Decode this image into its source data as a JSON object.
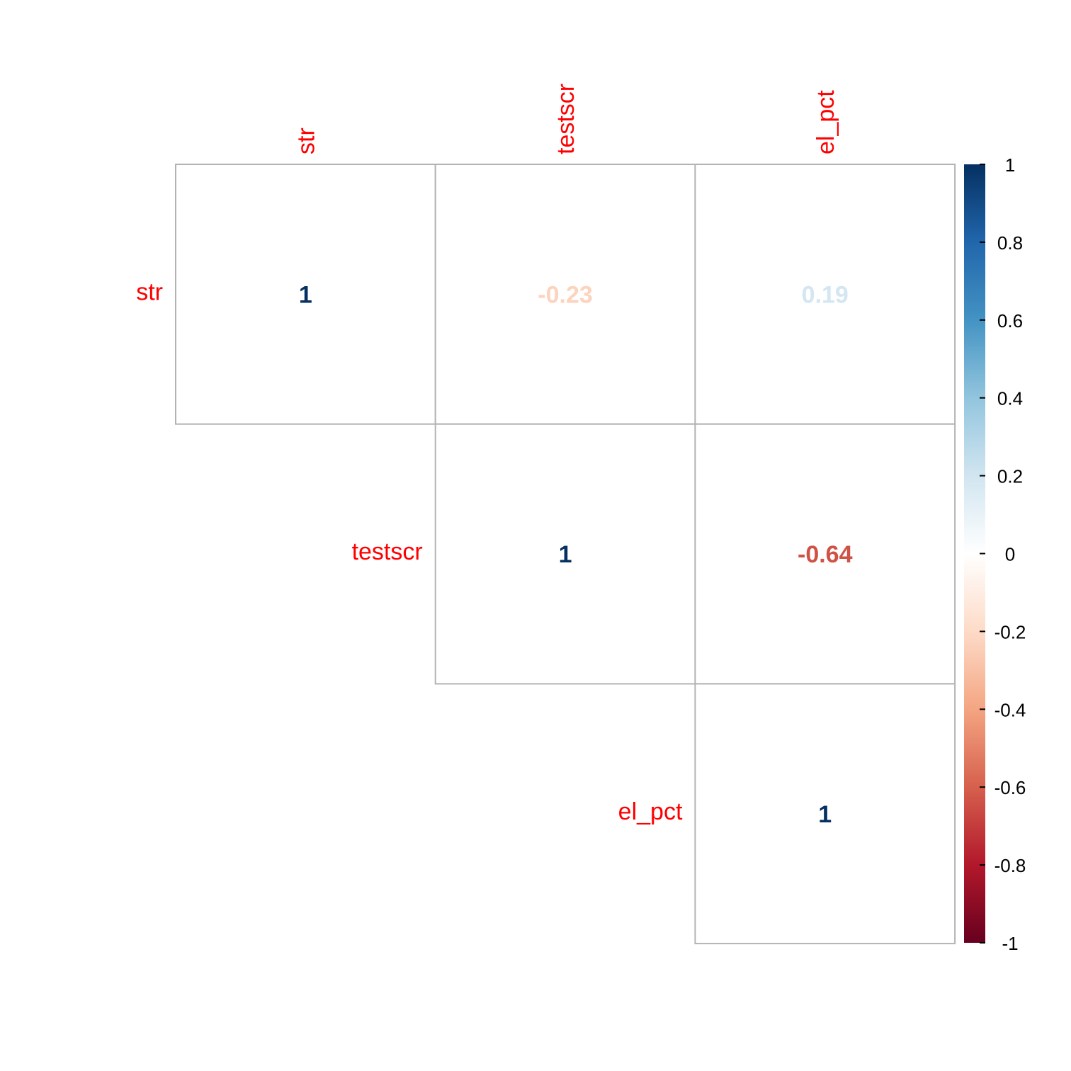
{
  "chart_data": {
    "type": "heatmap",
    "variables": [
      "str",
      "testscr",
      "el_pct"
    ],
    "layout": "upper-triangle",
    "cells": [
      {
        "row": "str",
        "col": "str",
        "value": 1,
        "label": "1"
      },
      {
        "row": "str",
        "col": "testscr",
        "value": -0.23,
        "label": "-0.23"
      },
      {
        "row": "str",
        "col": "el_pct",
        "value": 0.19,
        "label": "0.19"
      },
      {
        "row": "testscr",
        "col": "testscr",
        "value": 1,
        "label": "1"
      },
      {
        "row": "testscr",
        "col": "el_pct",
        "value": -0.64,
        "label": "-0.64"
      },
      {
        "row": "el_pct",
        "col": "el_pct",
        "value": 1,
        "label": "1"
      }
    ],
    "colorbar": {
      "range": [
        -1,
        1
      ],
      "ticks": [
        "1",
        "0.8",
        "0.6",
        "0.4",
        "0.2",
        "0",
        "-0.2",
        "-0.4",
        "-0.6",
        "-0.8",
        "-1"
      ],
      "tick_values": [
        1,
        0.8,
        0.6,
        0.4,
        0.2,
        0,
        -0.2,
        -0.4,
        -0.6,
        -0.8,
        -1
      ],
      "palette": [
        "#67001F",
        "#B2182B",
        "#D6604D",
        "#F4A582",
        "#FDDBC7",
        "#FFFFFF",
        "#D1E5F0",
        "#92C5DE",
        "#4393C3",
        "#2166AC",
        "#053061"
      ]
    },
    "label_color": "#ff0000"
  }
}
